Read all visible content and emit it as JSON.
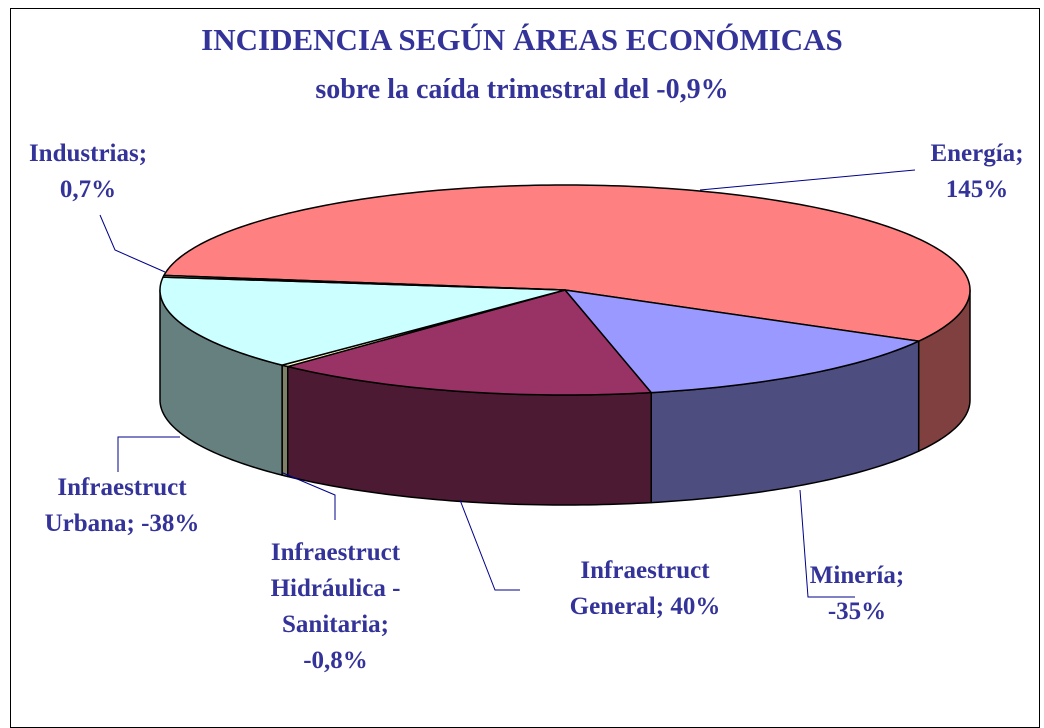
{
  "chart_data": {
    "type": "pie",
    "three_d": true,
    "title": "INCIDENCIA SEGÚN ÁREAS ECONÓMICAS",
    "subtitle": "sobre la caída trimestral del -0,9%",
    "categories": [
      "Energía",
      "Minería",
      "Infraestruct General",
      "Infraestruct Hidráulica - Sanitaria",
      "Infraestruct Urbana",
      "Industrias"
    ],
    "values": [
      145,
      -35,
      40,
      -0.8,
      -38,
      0.7
    ],
    "value_labels": [
      "145%",
      "-35%",
      "40%",
      "-0,8%",
      "-38%",
      "0,7%"
    ],
    "label_separator": ";",
    "colors": [
      "#FF8080",
      "#9999FF",
      "#993366",
      "#FFFFCC",
      "#CCFFFF",
      "#CCFFCC"
    ],
    "text_color": "#333399"
  }
}
